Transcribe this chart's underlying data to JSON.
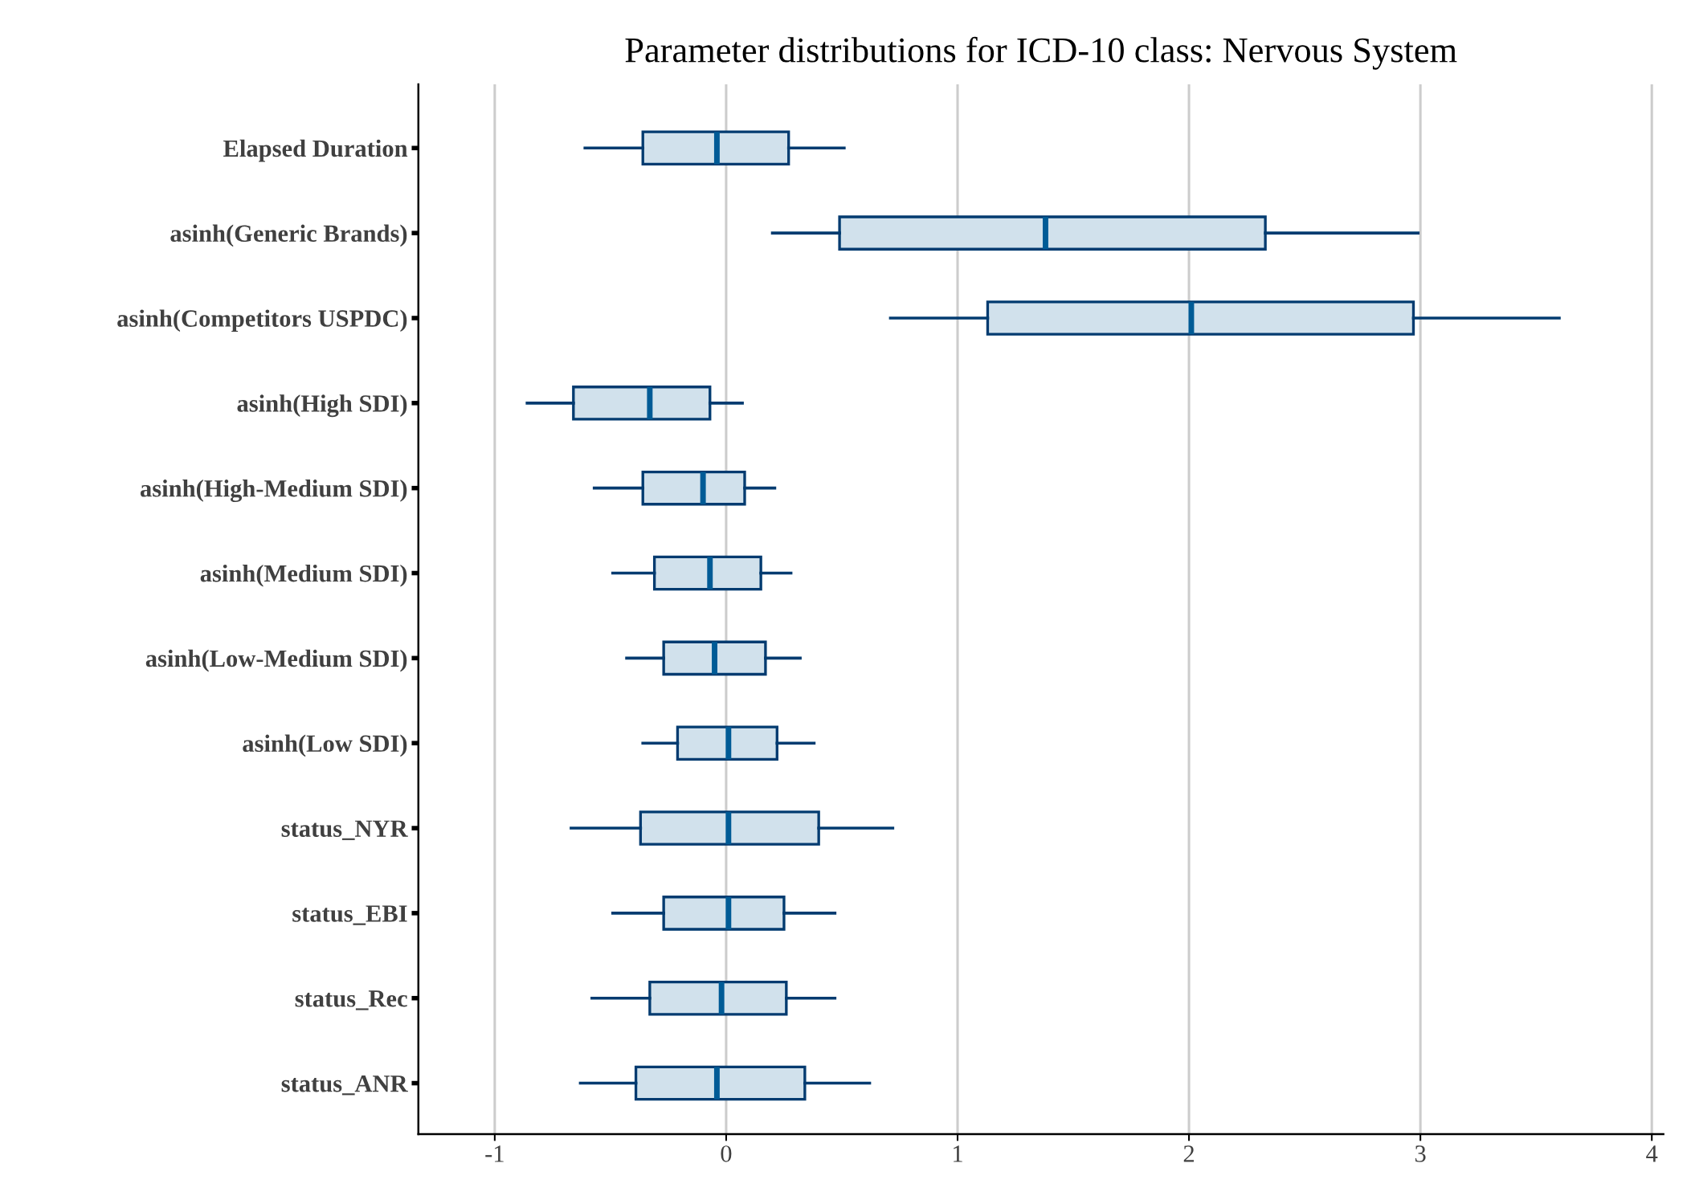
{
  "chart_data": {
    "type": "box",
    "orientation": "horizontal",
    "title": "Parameter distributions for ICD-10 class: Nervous System",
    "categories": [
      "Elapsed Duration",
      "asinh(Generic Brands)",
      "asinh(Competitors USPDC)",
      "asinh(High SDI)",
      "asinh(High-Medium SDI)",
      "asinh(Medium SDI)",
      "asinh(Low-Medium SDI)",
      "asinh(Low SDI)",
      "status_NYR",
      "status_EBI",
      "status_Rec",
      "status_ANR"
    ],
    "boxes": [
      {
        "low": -0.61,
        "q1": -0.36,
        "median": -0.04,
        "q3": 0.27,
        "high": 0.51
      },
      {
        "low": 0.2,
        "q1": 0.49,
        "median": 1.38,
        "q3": 2.33,
        "high": 2.99
      },
      {
        "low": 0.71,
        "q1": 1.13,
        "median": 2.01,
        "q3": 2.97,
        "high": 3.6
      },
      {
        "low": -0.86,
        "q1": -0.66,
        "median": -0.33,
        "q3": -0.07,
        "high": 0.07
      },
      {
        "low": -0.57,
        "q1": -0.36,
        "median": -0.1,
        "q3": 0.08,
        "high": 0.21
      },
      {
        "low": -0.49,
        "q1": -0.31,
        "median": -0.07,
        "q3": 0.15,
        "high": 0.28
      },
      {
        "low": -0.43,
        "q1": -0.27,
        "median": -0.05,
        "q3": 0.17,
        "high": 0.32
      },
      {
        "low": -0.36,
        "q1": -0.21,
        "median": 0.01,
        "q3": 0.22,
        "high": 0.38
      },
      {
        "low": -0.67,
        "q1": -0.37,
        "median": 0.01,
        "q3": 0.4,
        "high": 0.72
      },
      {
        "low": -0.49,
        "q1": -0.27,
        "median": 0.01,
        "q3": 0.25,
        "high": 0.47
      },
      {
        "low": -0.58,
        "q1": -0.33,
        "median": -0.02,
        "q3": 0.26,
        "high": 0.47
      },
      {
        "low": -0.63,
        "q1": -0.39,
        "median": -0.04,
        "q3": 0.34,
        "high": 0.62
      }
    ],
    "color": "#023b70",
    "xlim": [
      -1.33,
      4.05
    ],
    "xticks": [
      {
        "value": -1,
        "label": "-1"
      },
      0,
      1,
      2,
      3,
      4
    ],
    "grid": "x"
  }
}
